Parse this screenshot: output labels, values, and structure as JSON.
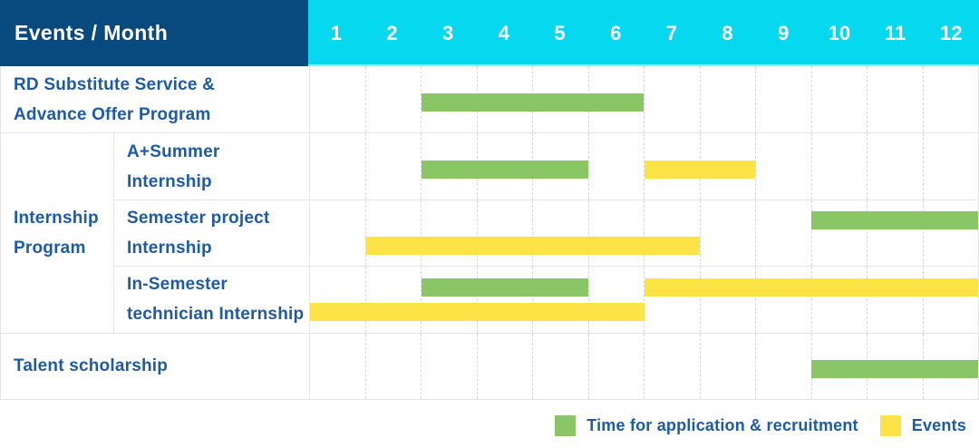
{
  "header": {
    "title": "Events / Month",
    "months": [
      "1",
      "2",
      "3",
      "4",
      "5",
      "6",
      "7",
      "8",
      "9",
      "10",
      "11",
      "12"
    ]
  },
  "colors": {
    "navy": "#084A7D",
    "cyan": "#06D9EF",
    "green": "#8AC566",
    "yellow": "#FDE345",
    "text_blue": "#1E5BA6",
    "border": "#E4E4E4",
    "gridline": "#D8D8D8"
  },
  "chart_data": {
    "type": "bar",
    "subtype": "gantt-schedule",
    "title": "Events / Month",
    "x_axis": {
      "label": "Month",
      "categories": [
        1,
        2,
        3,
        4,
        5,
        6,
        7,
        8,
        9,
        10,
        11,
        12
      ],
      "range": [
        1,
        12
      ]
    },
    "grid": "dashed-vertical-month-lines",
    "group_label_lines": [
      "Internship",
      "Program"
    ],
    "rows": [
      {
        "label": "RD Substitute Service & Advance Offer Program",
        "label_lines": [
          "RD Substitute Service &",
          "Advance Offer Program"
        ],
        "group": null,
        "bars": [
          {
            "from_month": 3,
            "to_month": 6,
            "category": "application",
            "lane": "mid"
          }
        ]
      },
      {
        "label": "A+Summer Internship",
        "label_lines": [
          "A+Summer",
          "Internship"
        ],
        "group": "Internship Program",
        "bars": [
          {
            "from_month": 3,
            "to_month": 5,
            "category": "application",
            "lane": "mid"
          },
          {
            "from_month": 7,
            "to_month": 8,
            "category": "events",
            "lane": "mid"
          }
        ]
      },
      {
        "label": "Semester project Internship",
        "label_lines": [
          "Semester project",
          "Internship"
        ],
        "group": "Internship Program",
        "bars": [
          {
            "from_month": 10,
            "to_month": 12,
            "category": "application",
            "lane": "top"
          },
          {
            "from_month": 2,
            "to_month": 7,
            "category": "events",
            "lane": "bottom"
          }
        ]
      },
      {
        "label": "In-Semester technician Internship",
        "label_lines": [
          "In-Semester",
          "technician Internship"
        ],
        "group": "Internship Program",
        "bars": [
          {
            "from_month": 3,
            "to_month": 5,
            "category": "application",
            "lane": "top"
          },
          {
            "from_month": 7,
            "to_month": 12,
            "category": "events",
            "lane": "top"
          },
          {
            "from_month": 1,
            "to_month": 6,
            "category": "events",
            "lane": "bottom"
          }
        ]
      },
      {
        "label": "Talent scholarship",
        "label_lines": [
          "Talent scholarship"
        ],
        "group": null,
        "bars": [
          {
            "from_month": 10,
            "to_month": 12,
            "category": "application",
            "lane": "mid"
          }
        ]
      }
    ],
    "category_colors": {
      "application": "#8AC566",
      "events": "#FDE345"
    },
    "legend": {
      "position": "bottom-right",
      "items": [
        {
          "label": "Time for application & recruitment",
          "category": "application",
          "color": "#8AC566"
        },
        {
          "label": "Events",
          "category": "events",
          "color": "#FDE345"
        }
      ]
    }
  }
}
